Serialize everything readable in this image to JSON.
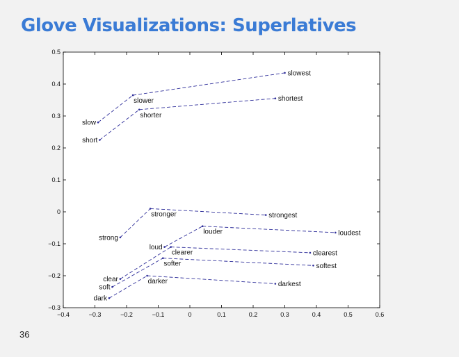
{
  "slide": {
    "title": "Glove Visualizations: Superlatives",
    "number": "36"
  },
  "colors": {
    "title": "#3a7bd5",
    "line": "#2e2e9a",
    "background": "#f2f2f2"
  },
  "chart_data": {
    "type": "scatter",
    "xlim": [
      -0.4,
      0.6
    ],
    "ylim": [
      -0.3,
      0.5
    ],
    "xticks": [
      -0.4,
      -0.3,
      -0.2,
      -0.1,
      0,
      0.1,
      0.2,
      0.3,
      0.4,
      0.5,
      0.6
    ],
    "yticks": [
      -0.3,
      -0.2,
      -0.1,
      0,
      0.1,
      0.2,
      0.3,
      0.4,
      0.5
    ],
    "xticklabels": [
      "−0.4",
      "−0.3",
      "−0.2",
      "−0.1",
      "0",
      "0.1",
      "0.2",
      "0.3",
      "0.4",
      "0.5",
      "0.6"
    ],
    "yticklabels": [
      "−0.3",
      "−0.2",
      "−0.1",
      "0",
      "0.1",
      "0.2",
      "0.3",
      "0.4",
      "0.5"
    ],
    "grid": false,
    "line_style": "dashed",
    "chains": [
      {
        "points": [
          {
            "word": "slow",
            "x": -0.29,
            "y": 0.28
          },
          {
            "word": "slower",
            "x": -0.18,
            "y": 0.365
          },
          {
            "word": "slowest",
            "x": 0.3,
            "y": 0.435
          }
        ]
      },
      {
        "points": [
          {
            "word": "short",
            "x": -0.285,
            "y": 0.225
          },
          {
            "word": "shorter",
            "x": -0.16,
            "y": 0.32
          },
          {
            "word": "shortest",
            "x": 0.27,
            "y": 0.355
          }
        ]
      },
      {
        "points": [
          {
            "word": "strong",
            "x": -0.22,
            "y": -0.08
          },
          {
            "word": "stronger",
            "x": -0.125,
            "y": 0.01
          },
          {
            "word": "strongest",
            "x": 0.24,
            "y": -0.01
          }
        ]
      },
      {
        "points": [
          {
            "word": "loud",
            "x": -0.08,
            "y": -0.11
          },
          {
            "word": "louder",
            "x": 0.04,
            "y": -0.045
          },
          {
            "word": "loudest",
            "x": 0.46,
            "y": -0.065
          }
        ]
      },
      {
        "points": [
          {
            "word": "clear",
            "x": -0.22,
            "y": -0.21
          },
          {
            "word": "clearer",
            "x": -0.06,
            "y": -0.11
          },
          {
            "word": "clearest",
            "x": 0.38,
            "y": -0.128
          }
        ]
      },
      {
        "points": [
          {
            "word": "soft",
            "x": -0.245,
            "y": -0.235
          },
          {
            "word": "softer",
            "x": -0.085,
            "y": -0.145
          },
          {
            "word": "softest",
            "x": 0.39,
            "y": -0.168
          }
        ]
      },
      {
        "points": [
          {
            "word": "dark",
            "x": -0.255,
            "y": -0.27
          },
          {
            "word": "darker",
            "x": -0.135,
            "y": -0.2
          },
          {
            "word": "darkest",
            "x": 0.27,
            "y": -0.225
          }
        ]
      }
    ]
  }
}
